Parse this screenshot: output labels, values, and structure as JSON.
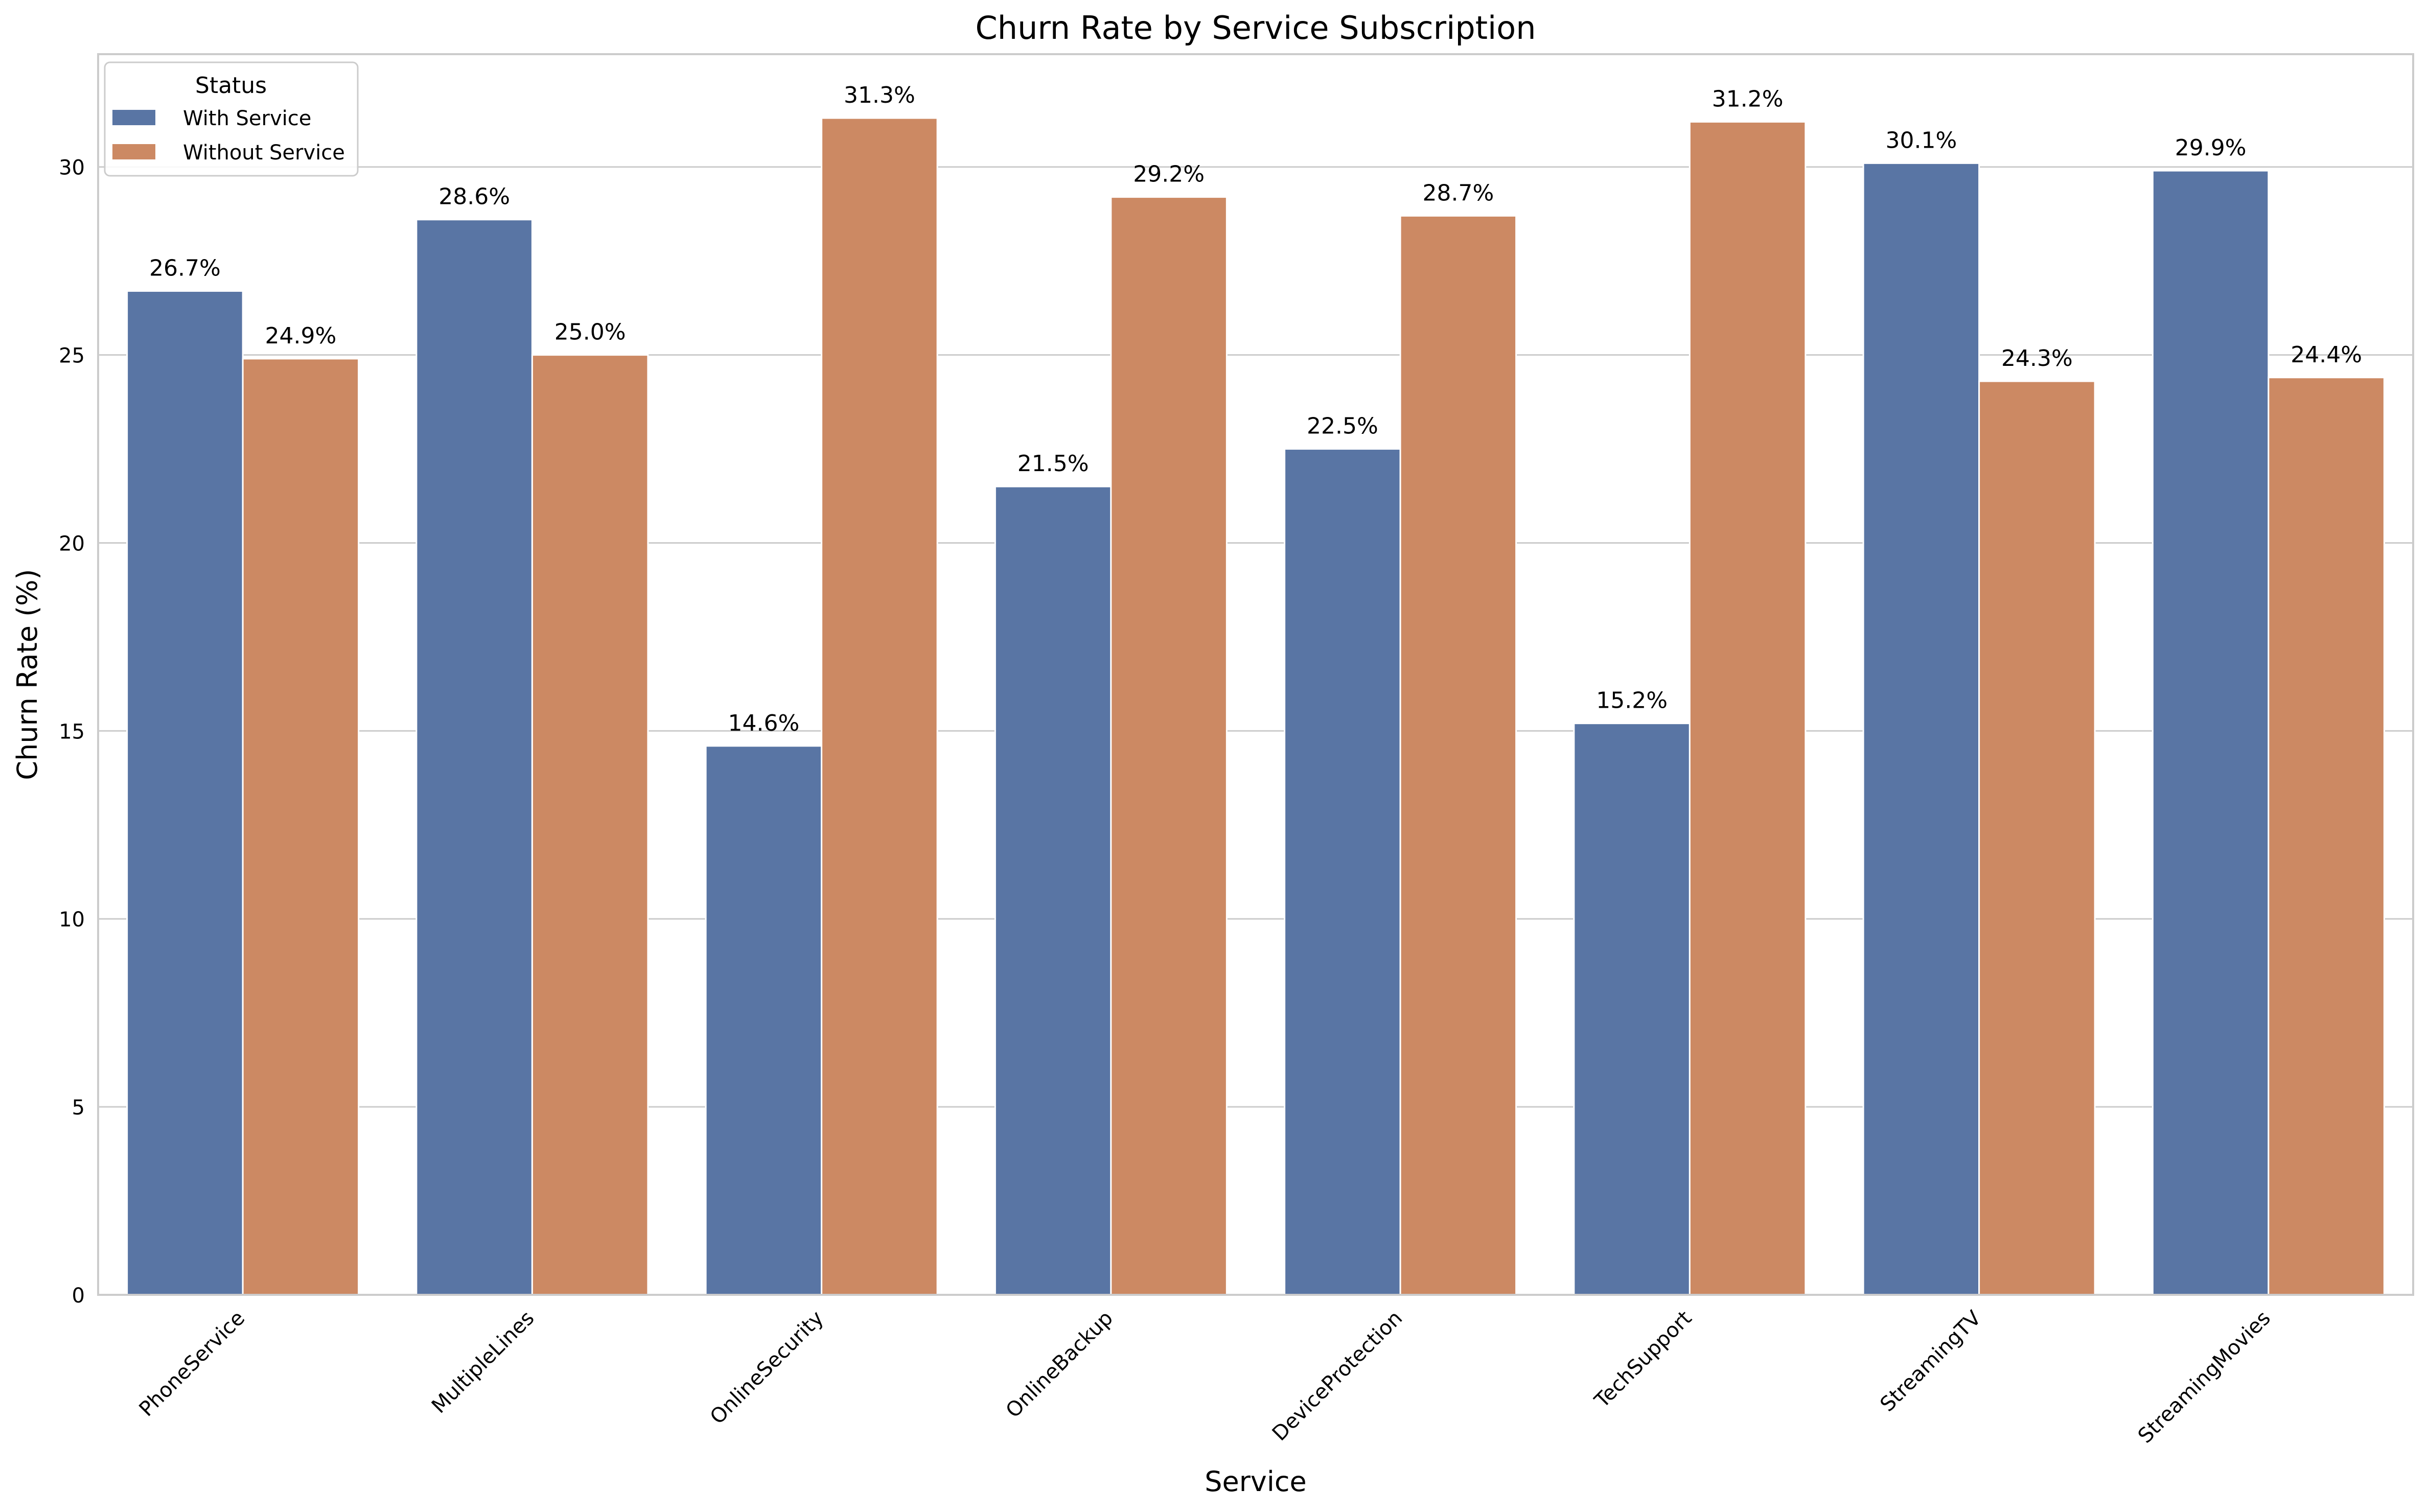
{
  "chart_data": {
    "type": "bar",
    "title": "Churn Rate by Service Subscription",
    "xlabel": "Service",
    "ylabel": "Churn Rate (%)",
    "ylim": [
      0,
      33
    ],
    "yticks": [
      0,
      5,
      10,
      15,
      20,
      25,
      30
    ],
    "grid": true,
    "legend": {
      "title": "Status",
      "placement": "top-left"
    },
    "categories": [
      "PhoneService",
      "MultipleLines",
      "OnlineSecurity",
      "OnlineBackup",
      "DeviceProtection",
      "TechSupport",
      "StreamingTV",
      "StreamingMovies"
    ],
    "series": [
      {
        "name": "With Service",
        "color": "#5975a4",
        "values": [
          26.7,
          28.6,
          14.6,
          21.5,
          22.5,
          15.2,
          30.1,
          29.9
        ],
        "labels": [
          "26.7%",
          "28.6%",
          "14.6%",
          "21.5%",
          "22.5%",
          "15.2%",
          "30.1%",
          "29.9%"
        ]
      },
      {
        "name": "Without Service",
        "color": "#cc8963",
        "values": [
          24.9,
          25.0,
          31.3,
          29.2,
          28.7,
          31.2,
          24.3,
          24.4
        ],
        "labels": [
          "24.9%",
          "25.0%",
          "31.3%",
          "29.2%",
          "28.7%",
          "31.2%",
          "24.3%",
          "24.4%"
        ]
      }
    ]
  }
}
